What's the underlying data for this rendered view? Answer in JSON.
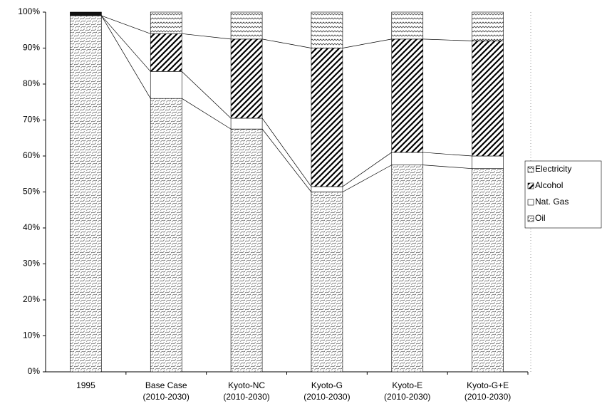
{
  "chart_data": {
    "type": "stacked_bar",
    "categories": [
      [
        "1995"
      ],
      [
        "Base Case",
        "(2010-2030)"
      ],
      [
        "Kyoto-NC",
        "(2010-2030)"
      ],
      [
        "Kyoto-G",
        "(2010-2030)"
      ],
      [
        "Kyoto-E",
        "(2010-2030)"
      ],
      [
        "Kyoto-G+E",
        "(2010-2030)"
      ]
    ],
    "series": [
      {
        "name": "Oil",
        "color": "#ffffff",
        "values": [
          99,
          76,
          67.5,
          50,
          57.5,
          56.5
        ]
      },
      {
        "name": "Nat. Gas",
        "color": "#ffffff",
        "values": [
          0,
          7.5,
          3,
          1.5,
          3.5,
          3.5
        ]
      },
      {
        "name": "Alcohol",
        "color": "#ffffff",
        "values": [
          0,
          10.5,
          22,
          38.5,
          31.5,
          32
        ]
      },
      {
        "name": "Electricity",
        "color": "#ffffff",
        "values": [
          1,
          6,
          7.5,
          10,
          7.5,
          8
        ]
      }
    ],
    "ylim": [
      0,
      100
    ],
    "yticks": [
      {
        "value": 0,
        "label": "0%"
      },
      {
        "value": 10,
        "label": "10%"
      },
      {
        "value": 20,
        "label": "20%"
      },
      {
        "value": 30,
        "label": "30%"
      },
      {
        "value": 40,
        "label": "40%"
      },
      {
        "value": 50,
        "label": "50%"
      },
      {
        "value": 60,
        "label": "60%"
      },
      {
        "value": 70,
        "label": "70%"
      },
      {
        "value": 80,
        "label": "80%"
      },
      {
        "value": 90,
        "label": "90%"
      },
      {
        "value": 100,
        "label": "100%"
      }
    ],
    "legend": "right"
  }
}
